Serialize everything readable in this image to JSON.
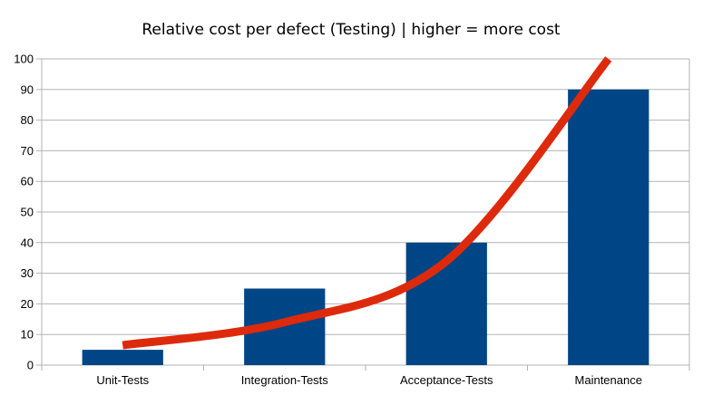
{
  "chart_data": {
    "type": "bar",
    "title": "Relative cost per defect (Testing) | higher = more cost",
    "xlabel": "",
    "ylabel": "",
    "categories": [
      "Unit-Tests",
      "Integration-Tests",
      "Acceptance-Tests",
      "Maintenance"
    ],
    "values": [
      5,
      25,
      40,
      90
    ],
    "ylim": [
      0,
      100
    ],
    "yticks": [
      "0",
      "10",
      "20",
      "30",
      "40",
      "50",
      "60",
      "70",
      "80",
      "90",
      "100"
    ],
    "grid": true,
    "legend": "none",
    "bar_color": "#004586",
    "trend_color": "#dd2a0d",
    "trend_curve": [
      {
        "category_position": 0,
        "value": 6.5
      },
      {
        "category_position": 1,
        "value": 14
      },
      {
        "category_position": 2,
        "value": 34
      },
      {
        "category_position": 3,
        "value": 100
      }
    ]
  }
}
